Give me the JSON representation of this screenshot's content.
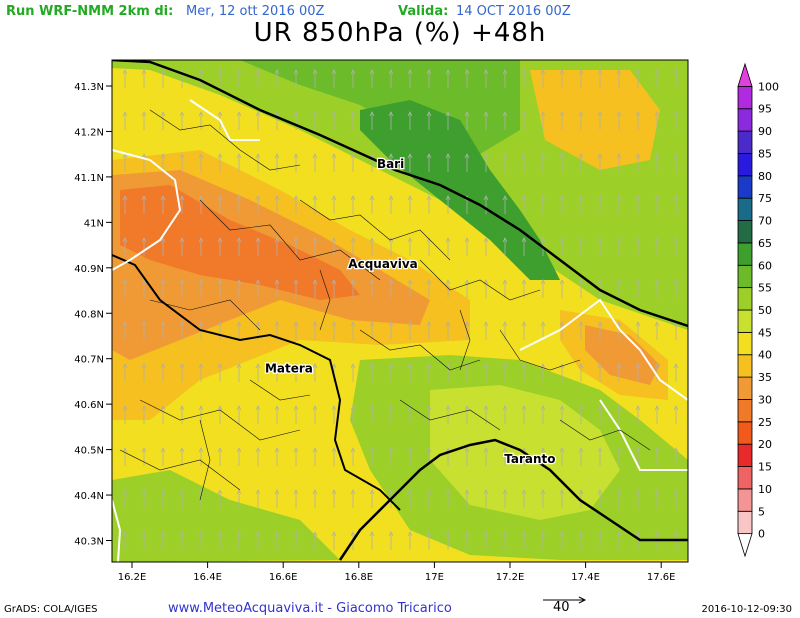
{
  "header": {
    "run_label": "Run WRF-NMM 2km di:",
    "run_date": "Mer, 12 ott 2016 00Z",
    "valid_label": "Valida:",
    "valid_date": "14 OCT 2016 00Z",
    "run_label_color": "#22aa22",
    "run_date_color": "#3366cc",
    "valid_label_color": "#22aa22",
    "valid_date_color": "#3366cc"
  },
  "title": "UR 850hPa (%) +48h",
  "map": {
    "lat_ticks": [
      "41.3N",
      "41.2N",
      "41.1N",
      "41N",
      "40.9N",
      "40.8N",
      "40.7N",
      "40.6N",
      "40.5N",
      "40.4N",
      "40.3N"
    ],
    "lon_ticks": [
      "16.2E",
      "16.4E",
      "16.6E",
      "16.8E",
      "17E",
      "17.2E",
      "17.4E",
      "17.6E"
    ],
    "cities": [
      {
        "name": "Bari",
        "lon": 16.87,
        "lat": 41.12
      },
      {
        "name": "Acquaviva",
        "lon": 16.85,
        "lat": 40.9
      },
      {
        "name": "Matera",
        "lon": 16.6,
        "lat": 40.67
      },
      {
        "name": "Taranto",
        "lon": 17.24,
        "lat": 40.47
      }
    ]
  },
  "colorbar": {
    "levels": [
      "0",
      "5",
      "10",
      "15",
      "20",
      "25",
      "30",
      "35",
      "40",
      "45",
      "50",
      "55",
      "60",
      "65",
      "70",
      "75",
      "80",
      "85",
      "90",
      "95",
      "100"
    ],
    "colors": [
      "#f9c6c6",
      "#f49595",
      "#ee6363",
      "#e82a2a",
      "#f05a1a",
      "#f07a2a",
      "#f09a35",
      "#f5c020",
      "#f2e020",
      "#c8e030",
      "#9cd028",
      "#6cbb2a",
      "#3e9e2e",
      "#226b44",
      "#1a6a8a",
      "#1a3ac8",
      "#2a1ae0",
      "#4a2ac8",
      "#8a2adc",
      "#b02ae0",
      "#e040e0"
    ]
  },
  "footer": {
    "left": "GrADS: COLA/IGES",
    "center": "www.MeteoAcquaviva.it  -  Giacomo Tricarico",
    "right": "2016-10-12-09:30",
    "vector_ref": "40",
    "center_color": "#3333cc"
  }
}
